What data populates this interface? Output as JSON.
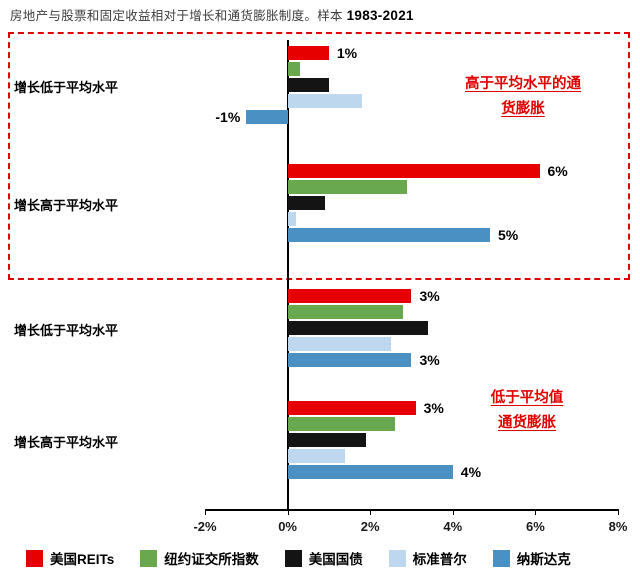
{
  "title": {
    "text": "房地产与股票和固定收益相对于增长和通货膨胀制度。样本 ",
    "sample": "1983-2021"
  },
  "annotations": {
    "high_inflation": {
      "lines": [
        "高于平均水平的通",
        "货膨胀"
      ],
      "color": "#e00000"
    },
    "low_inflation": {
      "lines": [
        "低于平均值",
        "通货膨胀"
      ],
      "color": "#e00000"
    }
  },
  "chart_data": {
    "type": "bar",
    "orientation": "horizontal",
    "title": "房地产与股票和固定收益相对于增长和通货膨胀制度。样本 1983-2021",
    "categories": [
      "增长低于平均水平",
      "增长高于平均水平",
      "增长低于平均水平",
      "增长高于平均水平"
    ],
    "sections": [
      {
        "name": "高于平均水平的通货膨胀",
        "category_indexes": [
          0,
          1
        ],
        "boxed": true,
        "box_color": "#e00000"
      },
      {
        "name": "低于平均值通货膨胀",
        "category_indexes": [
          2,
          3
        ],
        "boxed": false
      }
    ],
    "series": [
      {
        "name": "美国REITs",
        "color": "#e60000",
        "values": [
          1.0,
          6.1,
          3.0,
          3.1
        ],
        "labels": [
          "1%",
          "6%",
          "3%",
          "3%"
        ]
      },
      {
        "name": "纽约证交所指数",
        "color": "#6aa84f",
        "values": [
          0.3,
          2.9,
          2.8,
          2.6
        ],
        "labels": [
          "",
          "",
          "",
          ""
        ]
      },
      {
        "name": "美国国债",
        "color": "#141414",
        "values": [
          1.0,
          0.9,
          3.4,
          1.9
        ],
        "labels": [
          "",
          "",
          "",
          ""
        ]
      },
      {
        "name": "标准普尔",
        "color": "#bdd7ee",
        "values": [
          1.8,
          0.2,
          2.5,
          1.4
        ],
        "labels": [
          "",
          "",
          "",
          ""
        ]
      },
      {
        "name": "纳斯达克",
        "color": "#4a90c2",
        "values": [
          -1.0,
          4.9,
          3.0,
          4.0
        ],
        "labels": [
          "-1%",
          "5%",
          "3%",
          "4%"
        ]
      }
    ],
    "axis": {
      "x_min": -2,
      "x_max": 8,
      "ticks": [
        "-2%",
        "0%",
        "2%",
        "4%",
        "6%",
        "8%"
      ],
      "unit": "percent"
    },
    "legend_position": "bottom",
    "grid": false
  }
}
